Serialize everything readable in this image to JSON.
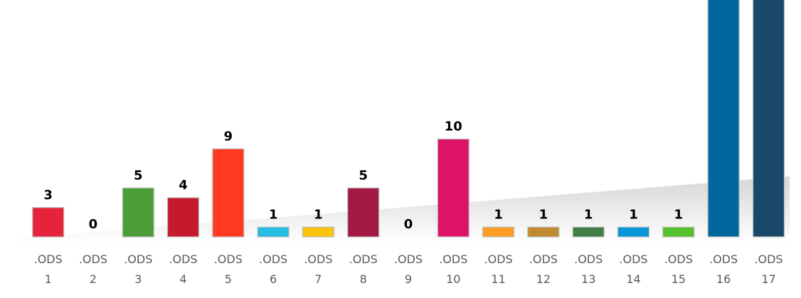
{
  "chart_data": {
    "type": "bar",
    "title": "",
    "xlabel": "",
    "ylabel": "",
    "categories": [
      [
        ".ODS",
        "1"
      ],
      [
        ".ODS",
        "2"
      ],
      [
        ".ODS",
        "3"
      ],
      [
        ".ODS",
        "4"
      ],
      [
        ".ODS",
        "5"
      ],
      [
        ".ODS",
        "6"
      ],
      [
        ".ODS",
        "7"
      ],
      [
        ".ODS",
        "8"
      ],
      [
        ".ODS",
        "9"
      ],
      [
        ".ODS",
        "10"
      ],
      [
        ".ODS",
        "11"
      ],
      [
        ".ODS",
        "12"
      ],
      [
        ".ODS",
        "13"
      ],
      [
        ".ODS",
        "14"
      ],
      [
        ".ODS",
        "15"
      ],
      [
        ".ODS",
        "16"
      ],
      [
        ".ODS",
        "17"
      ]
    ],
    "values": [
      3,
      0,
      5,
      4,
      9,
      1,
      1,
      5,
      0,
      10,
      1,
      1,
      1,
      1,
      1,
      null,
      null
    ],
    "data_labels": [
      "3",
      "0",
      "5",
      "4",
      "9",
      "1",
      "1",
      "5",
      "0",
      "10",
      "1",
      "1",
      "1",
      "1",
      "1",
      "",
      ""
    ],
    "colors": [
      "#E5243B",
      "#DDA63A",
      "#4C9F38",
      "#C5192D",
      "#FF3A21",
      "#26BDE2",
      "#FCC30B",
      "#A21942",
      "#FD6925",
      "#DD1367",
      "#FD9D24",
      "#BF8B2E",
      "#3F7E44",
      "#0A97D9",
      "#56C02B",
      "#00689D",
      "#19486A"
    ],
    "notes": "Bars for .ODS 16 and .ODS 17 extend beyond the top of the visible area (clipped); their value labels are not visible.",
    "grid": false,
    "legend": "none"
  }
}
